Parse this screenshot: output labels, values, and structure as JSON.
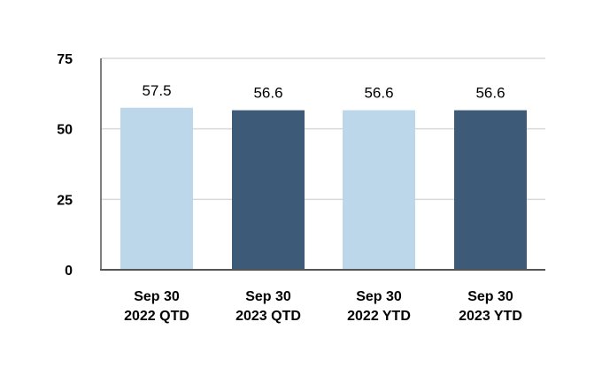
{
  "chart_data": {
    "type": "bar",
    "title": "",
    "xlabel": "",
    "ylabel": "",
    "ylim": [
      0,
      75
    ],
    "yticks": [
      "0",
      "25",
      "50",
      "75"
    ],
    "ytick_values": [
      0,
      25,
      50,
      75
    ],
    "grid": true,
    "categories": [
      [
        "Sep 30",
        "2022 QTD"
      ],
      [
        "Sep 30",
        "2023 QTD"
      ],
      [
        "Sep 30",
        "2022 YTD"
      ],
      [
        "Sep 30",
        "2023 YTD"
      ]
    ],
    "values": [
      57.5,
      56.6,
      56.6,
      56.6
    ],
    "value_labels": [
      "57.5",
      "56.6",
      "56.6",
      "56.6"
    ],
    "bar_colors": [
      "#bcd7ea",
      "#3d5a78",
      "#bcd7ea",
      "#3d5a78"
    ],
    "axis_color": "#555555",
    "grid_color": "#d9d9d9"
  }
}
